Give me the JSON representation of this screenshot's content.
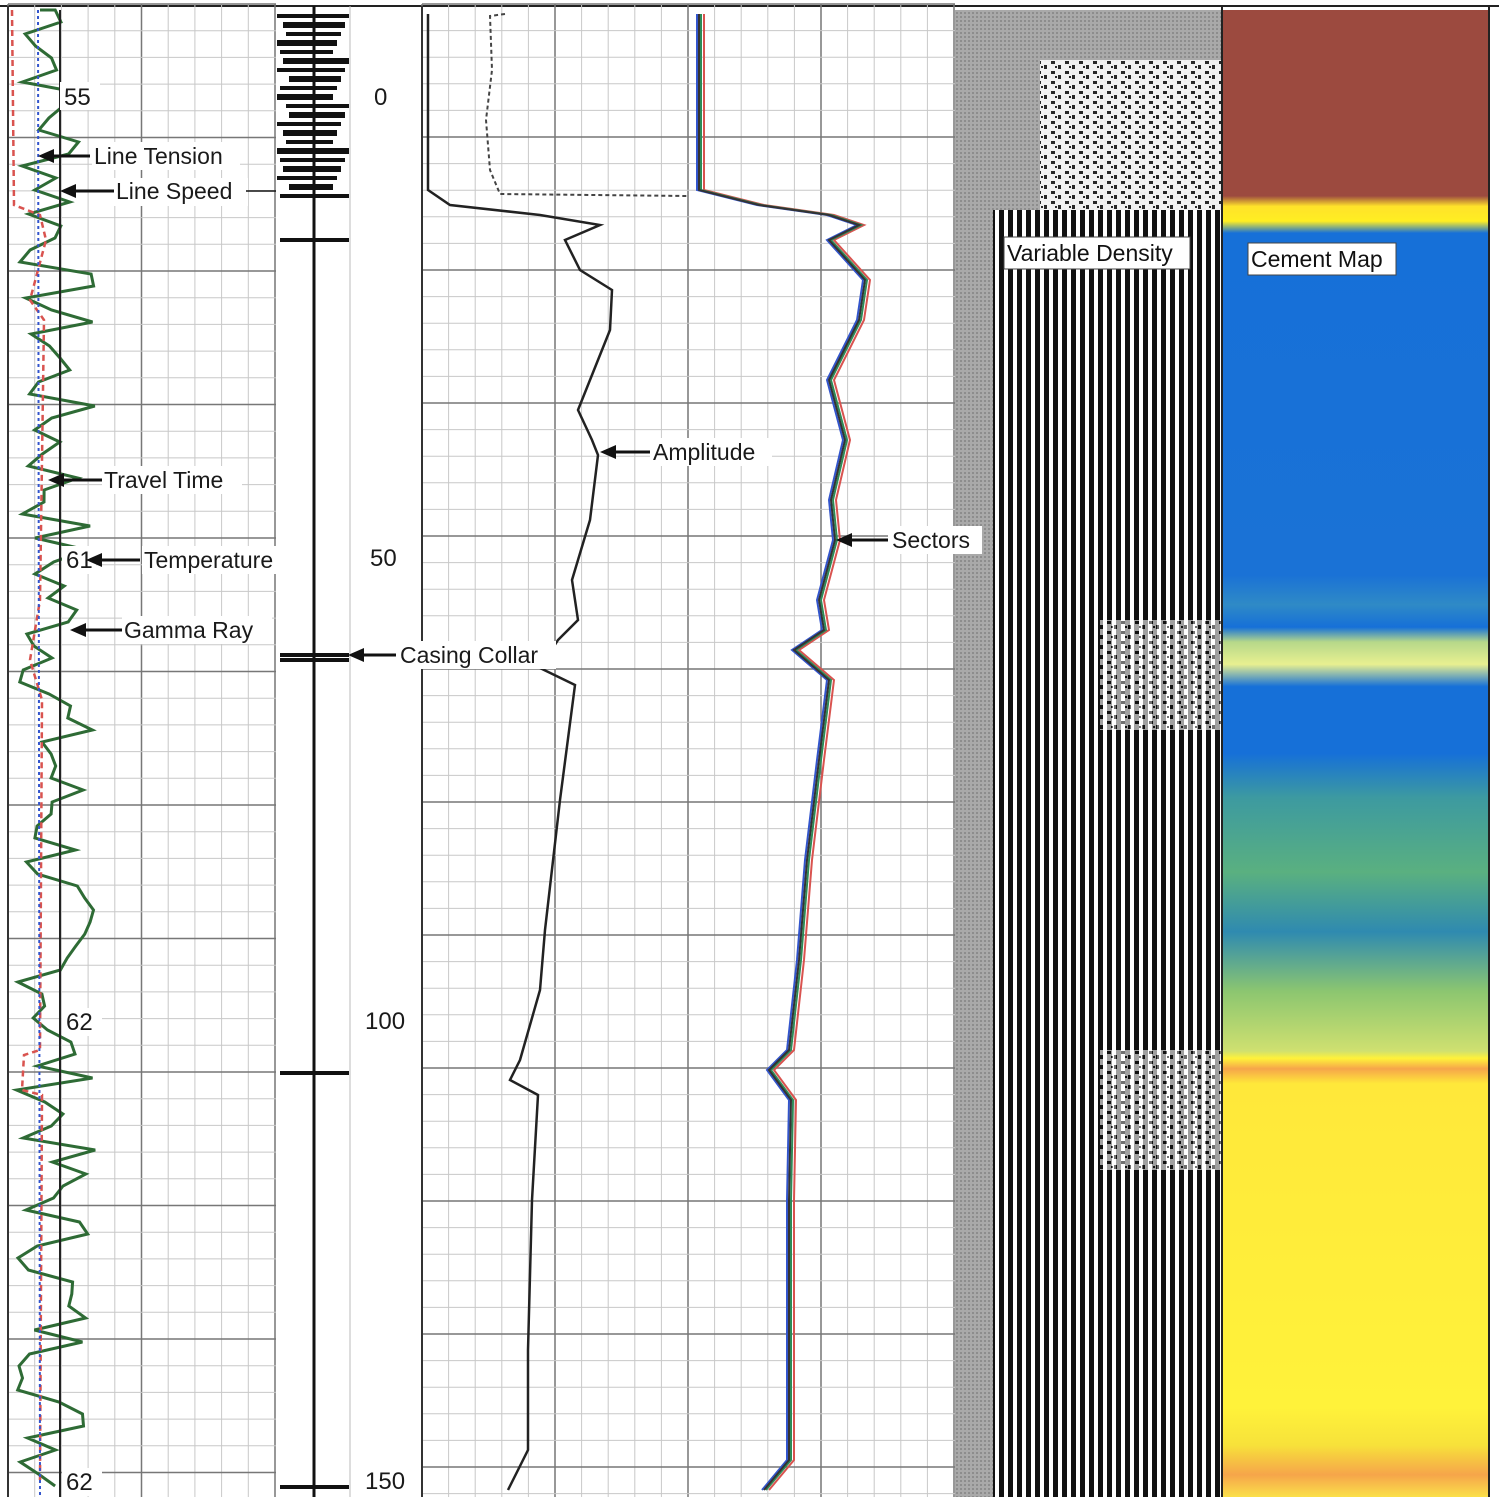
{
  "chart_data": {
    "type": "line",
    "title": "",
    "tracks": [
      {
        "track": "correlation",
        "depth_labels": [
          "55",
          "61",
          "62",
          "62"
        ],
        "annotations": [
          "Line Tension",
          "Line Speed",
          "Travel Time",
          "Temperature",
          "Gamma Ray"
        ],
        "series": [
          {
            "name": "Gamma Ray",
            "color": "#2e6b35",
            "style": "solid"
          },
          {
            "name": "Temperature",
            "color": "#d9534f",
            "style": "dashed"
          },
          {
            "name": "Travel Time",
            "color": "#3355cc",
            "style": "dotted"
          },
          {
            "name": "Line Speed",
            "color": "#222222",
            "style": "solid"
          },
          {
            "name": "Line Tension",
            "color": "#222222",
            "style": "solid"
          }
        ]
      },
      {
        "track": "casing collar",
        "annotations": [
          "Casing Collar"
        ]
      },
      {
        "track": "amplitude / sectors",
        "scale_labels": [
          "0",
          "50",
          "100",
          "150"
        ],
        "annotations": [
          "Amplitude",
          "Sectors"
        ],
        "series": [
          {
            "name": "Amplitude",
            "color": "#222222",
            "style": "solid"
          },
          {
            "name": "Sectors",
            "colors": [
              "#d9534f",
              "#3355cc",
              "#2e8b57",
              "#333333"
            ]
          }
        ]
      },
      {
        "track": "variable density",
        "annotations": [
          "Variable Density"
        ]
      },
      {
        "track": "cement map",
        "annotations": [
          "Cement Map"
        ],
        "colors": {
          "top": "#9c4a3f",
          "band": "#ffee22",
          "blue": "#1670d8",
          "green": "#58b07a",
          "yellow": "#fff23a",
          "orange": "#f6a54a"
        }
      }
    ],
    "grid": true,
    "legend": "inline arrow annotations"
  },
  "labels": {
    "line_tension": "Line Tension",
    "line_speed": "Line Speed",
    "travel_time": "Travel Time",
    "temperature": "Temperature",
    "gamma_ray": "Gamma Ray",
    "casing_collar": "Casing Collar",
    "amplitude": "Amplitude",
    "sectors": "Sectors",
    "variable_density": "Variable Density",
    "cement_map": "Cement Map",
    "depth_55": "55",
    "depth_61": "61",
    "depth_62a": "62",
    "depth_62b": "62",
    "scale_0": "0",
    "scale_50": "50",
    "scale_100": "100",
    "scale_150": "150"
  }
}
